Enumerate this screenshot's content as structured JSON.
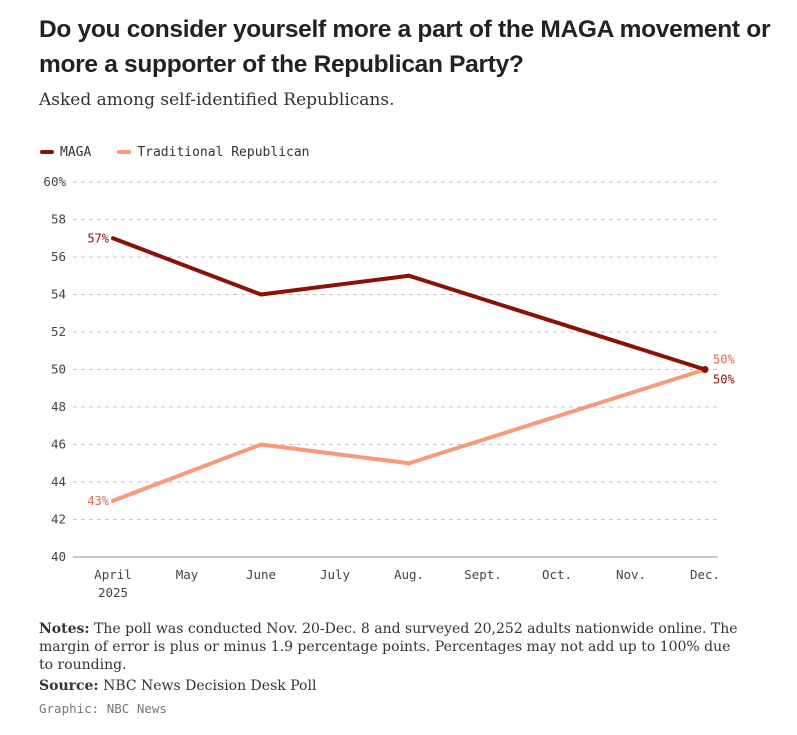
{
  "header": {
    "title_line1": "Do you consider yourself more a part of the MAGA movement or",
    "title_line2": "more a supporter of the Republican Party?",
    "subtitle": "Asked among self-identified Republicans."
  },
  "colors": {
    "maga": "#8B1106",
    "traditional": "#F79A7A",
    "grid": "#c4c4c4",
    "axis": "#999999"
  },
  "chart_data": {
    "type": "line",
    "title": "Do you consider yourself more a part of the MAGA movement or more a supporter of the Republican Party?",
    "xlabel": "",
    "ylabel": "",
    "ylim": [
      40,
      60
    ],
    "yticks": [
      40,
      42,
      44,
      46,
      48,
      50,
      52,
      54,
      56,
      58,
      60
    ],
    "ytick_labels": [
      "40",
      "42",
      "44",
      "46",
      "48",
      "50",
      "52",
      "54",
      "56",
      "58",
      "60%"
    ],
    "x_categories": [
      "April",
      "May",
      "June",
      "July",
      "Aug.",
      "Sept.",
      "Oct.",
      "Nov.",
      "Dec."
    ],
    "x_year_label": "2025",
    "grid": true,
    "legend": "top-left",
    "series": [
      {
        "name": "MAGA",
        "x": [
          "April",
          "June",
          "Aug.",
          "Dec."
        ],
        "values": [
          57,
          54,
          55,
          50
        ],
        "start_label": "57%",
        "end_label": "50%"
      },
      {
        "name": "Traditional Republican",
        "x": [
          "April",
          "June",
          "Aug.",
          "Dec."
        ],
        "values": [
          43,
          46,
          45,
          50
        ],
        "start_label": "43%",
        "end_label": "50%"
      }
    ]
  },
  "footer": {
    "notes_label": "Notes:",
    "notes_text": "The poll was conducted Nov. 20-Dec. 8 and surveyed 20,252 adults nationwide online. The margin of error is plus or minus 1.9 percentage points. Percentages may not add up to 100% due to rounding.",
    "source_label": "Source:",
    "source_text": "NBC News Decision Desk Poll",
    "credit": "Graphic: NBC News"
  }
}
